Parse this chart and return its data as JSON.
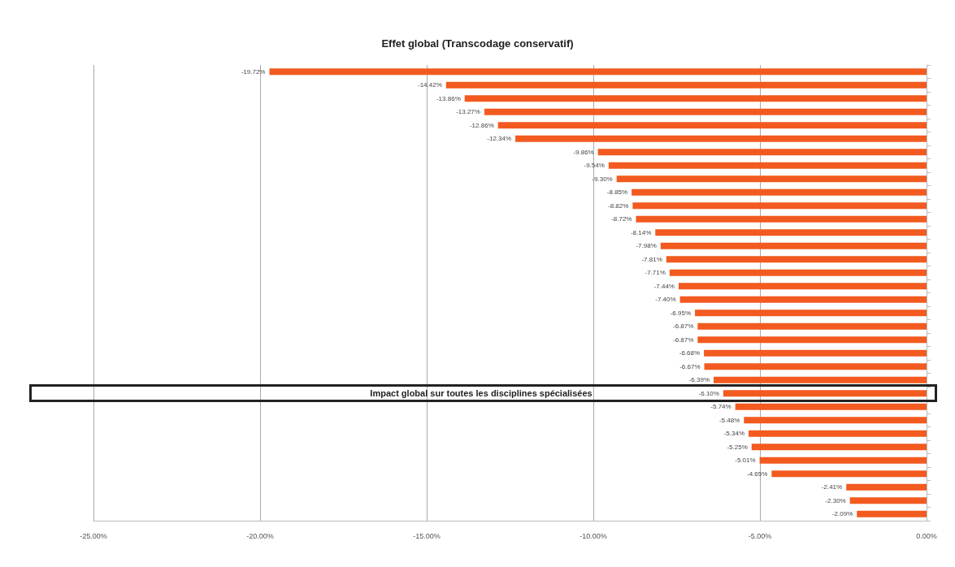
{
  "chart_data": {
    "type": "bar",
    "orientation": "horizontal",
    "title": "Effet global (Transcodage conservatif)",
    "categories": [
      null,
      null,
      null,
      null,
      null,
      null,
      null,
      null,
      null,
      null,
      null,
      null,
      null,
      null,
      null,
      null,
      null,
      null,
      null,
      null,
      null,
      null,
      null,
      null,
      "Impact global sur toutes les disciplines spécialisées",
      null,
      null,
      null,
      null,
      null,
      null,
      null,
      null,
      null
    ],
    "values": [
      -19.72,
      -14.42,
      -13.86,
      -13.27,
      -12.86,
      -12.34,
      -9.86,
      -9.54,
      -9.3,
      -8.85,
      -8.82,
      -8.72,
      -8.14,
      -7.98,
      -7.81,
      -7.71,
      -7.44,
      -7.4,
      -6.95,
      -6.87,
      -6.87,
      -6.68,
      -6.67,
      -6.39,
      -6.1,
      -5.74,
      -5.48,
      -5.34,
      -5.25,
      -5.01,
      -4.65,
      -2.41,
      -2.3,
      -2.09
    ],
    "value_labels": [
      "-19.72%",
      "-14.42%",
      "-13.86%",
      "-13.27%",
      "-12.86%",
      "-12.34%",
      "-9.86%",
      "-9.54%",
      "-9.30%",
      "-8.85%",
      "-8.82%",
      "-8.72%",
      "-8.14%",
      "-7.98%",
      "-7.81%",
      "-7.71%",
      "-7.44%",
      "-7.40%",
      "-6.95%",
      "-6.87%",
      "-6.87%",
      "-6.68%",
      "-6.67%",
      "-6.39%",
      "-6.10%",
      "-5.74%",
      "-5.48%",
      "-5.34%",
      "-5.25%",
      "-5.01%",
      "-4.65%",
      "-2.41%",
      "-2.30%",
      "-2.09%"
    ],
    "color": "#f25a1f",
    "xlim": [
      -25,
      0
    ],
    "xticks": [
      {
        "value": -25,
        "label": "-25.00%"
      },
      {
        "value": -20,
        "label": "-20.00%"
      },
      {
        "value": -15,
        "label": "-15.00%"
      },
      {
        "value": -10,
        "label": "-10.00%"
      },
      {
        "value": -5,
        "label": "-5.00%"
      },
      {
        "value": 0,
        "label": "0.00%"
      }
    ],
    "grid": "x"
  }
}
